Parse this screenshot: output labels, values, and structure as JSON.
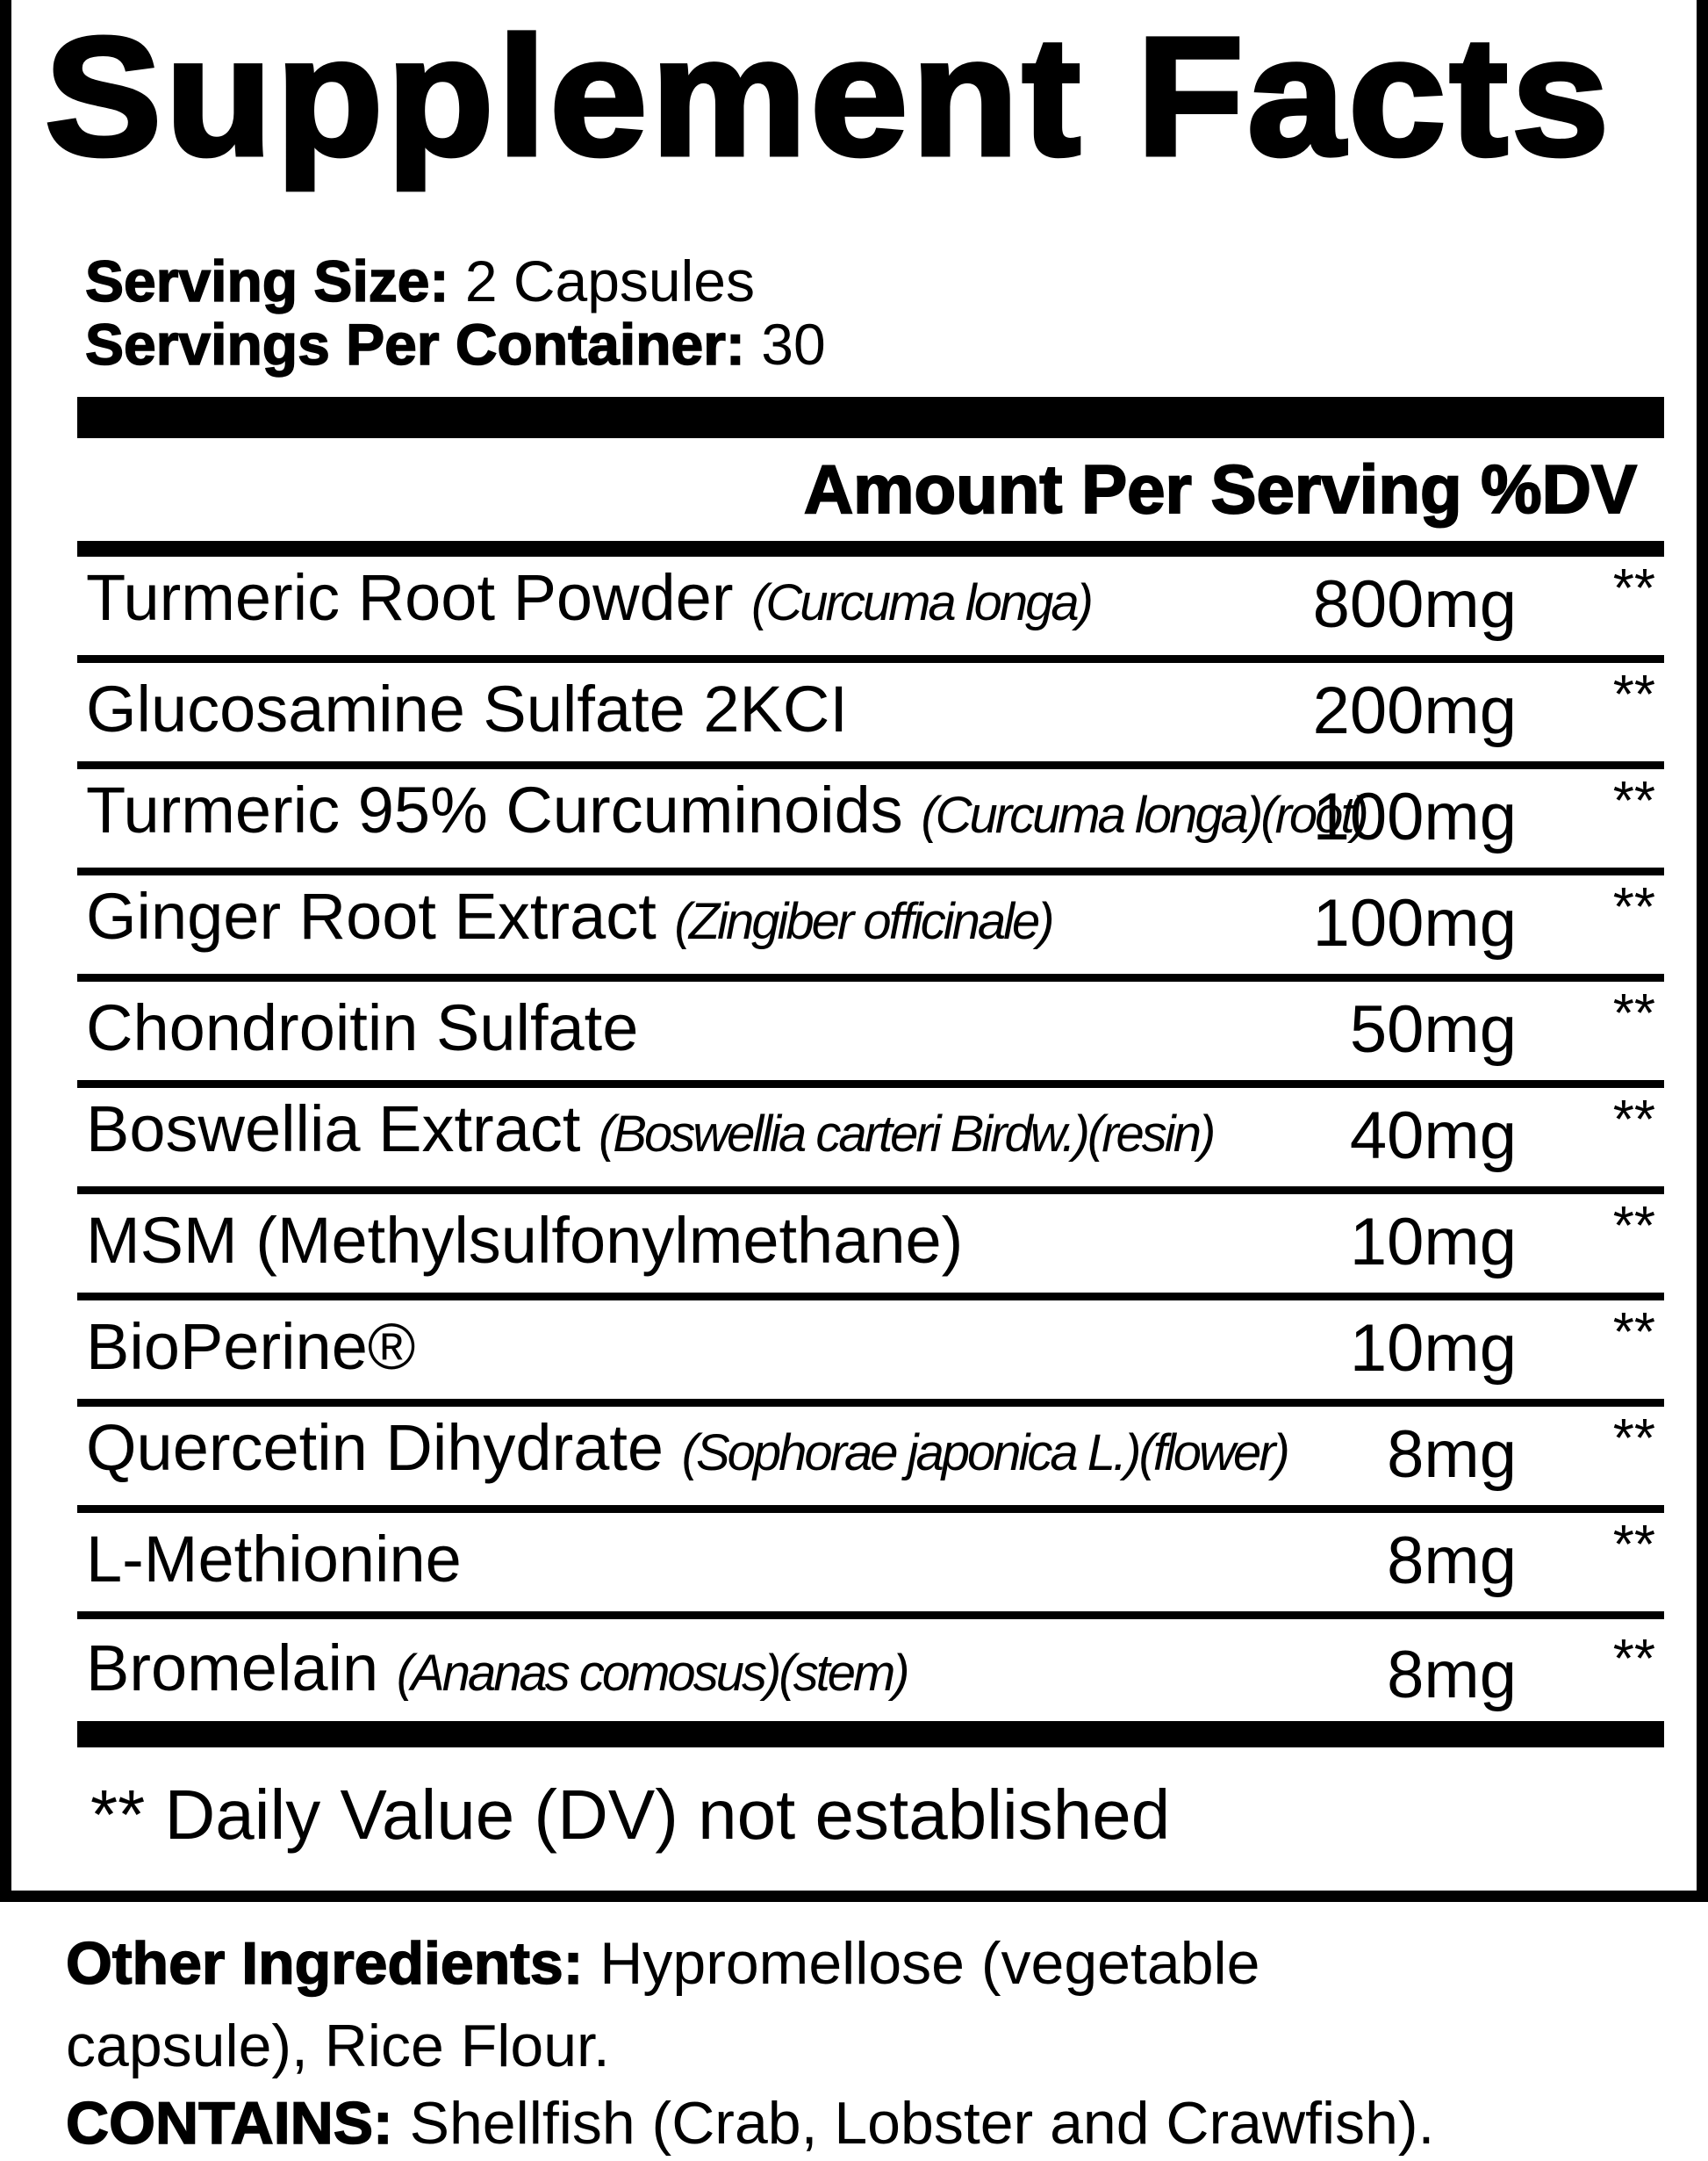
{
  "title": "Supplement Facts",
  "serving_size": {
    "label": "Serving Size:",
    "value": "2 Capsules"
  },
  "servings_per_container": {
    "label": "Servings Per Container:",
    "value": "30"
  },
  "header": "Amount Per Serving %DV",
  "rows": [
    {
      "name": "Turmeric Root Powder",
      "sci": "(Curcuma longa)",
      "amount": "800mg",
      "dv": "**"
    },
    {
      "name": "Glucosamine Sulfate 2KCI",
      "sci": "",
      "amount": "200mg",
      "dv": "**"
    },
    {
      "name": "Turmeric 95% Curcuminoids",
      "sci": "(Curcuma longa)(root)",
      "amount": "100mg",
      "dv": "**"
    },
    {
      "name": "Ginger Root Extract",
      "sci": "(Zingiber officinale)",
      "amount": "100mg",
      "dv": "**"
    },
    {
      "name": "Chondroitin Sulfate",
      "sci": "",
      "amount": "50mg",
      "dv": "**"
    },
    {
      "name": "Boswellia Extract",
      "sci": "(Boswellia carteri Birdw.)(resin)",
      "amount": "40mg",
      "dv": "**"
    },
    {
      "name": "MSM (Methylsulfonylmethane)",
      "sci": "",
      "amount": "10mg",
      "dv": "**"
    },
    {
      "name": "BioPerine®",
      "sci": "",
      "amount": "10mg",
      "dv": "**"
    },
    {
      "name": "Quercetin Dihydrate",
      "sci": "(Sophorae japonica L.)(flower)",
      "amount": "8mg",
      "dv": "**"
    },
    {
      "name": "L-Methionine",
      "sci": "",
      "amount": "8mg",
      "dv": "**"
    },
    {
      "name": "Bromelain",
      "sci": "(Ananas comosus)(stem)",
      "amount": "8mg",
      "dv": "**"
    }
  ],
  "footnote": "** Daily Value (DV) not established",
  "other_ingredients": {
    "label": "Other Ingredients:",
    "line1": "Hypromellose (vegetable",
    "line2": "capsule), Rice Flour."
  },
  "contains": {
    "label": "CONTAINS:",
    "value": "Shellfish (Crab, Lobster and Crawfish)."
  }
}
